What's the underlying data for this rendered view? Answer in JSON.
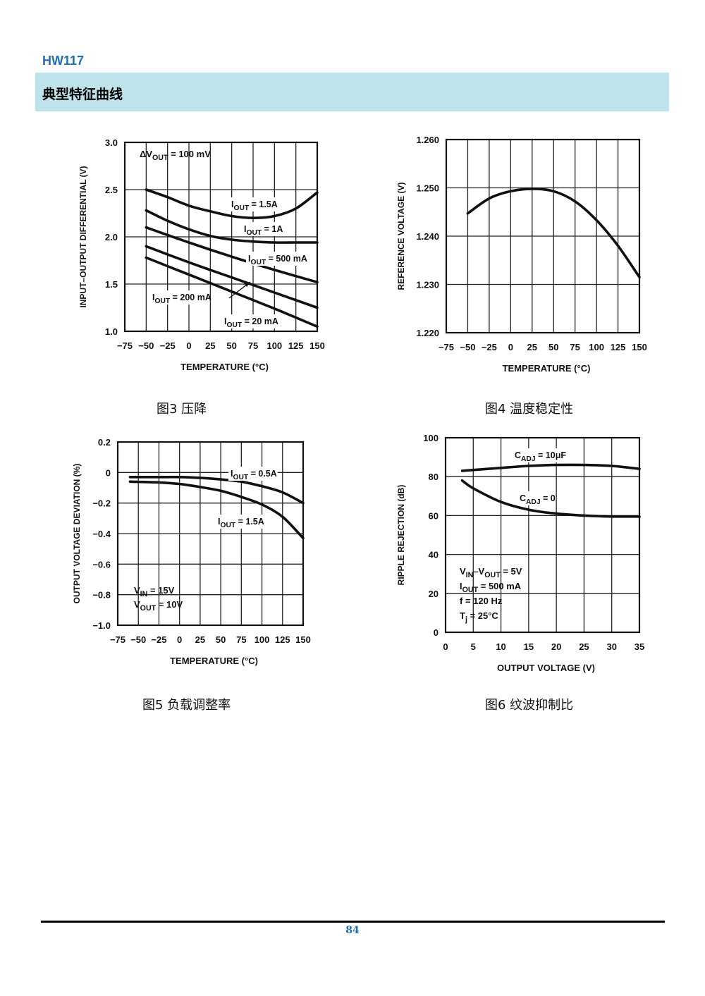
{
  "header": {
    "doc_code": "HW117",
    "section_title": "典型特征曲线"
  },
  "footer": {
    "page_number": "84"
  },
  "chart_data": [
    {
      "id": "fig3",
      "caption": "图3 压降",
      "type": "line",
      "xlabel": "TEMPERATURE (°C)",
      "ylabel": "INPUT–OUTPUT DIFFERENTIAL (V)",
      "xlim": [
        -75,
        150
      ],
      "ylim": [
        1.0,
        3.0
      ],
      "xticks": [
        "−75",
        "−50",
        "−25",
        "0",
        "25",
        "50",
        "75",
        "100",
        "125",
        "150"
      ],
      "yticks": [
        "1.0",
        "1.5",
        "2.0",
        "2.5",
        "3.0"
      ],
      "grid": true,
      "annotation_lines": [
        {
          "main": "ΔV",
          "sub": "OUT",
          "tail": " = 100 mV"
        }
      ],
      "series": [
        {
          "name": "I_OUT = 1.5A",
          "label": {
            "main": "I",
            "sub": "OUT",
            "tail": " = 1.5A"
          },
          "x": [
            -50,
            -25,
            0,
            25,
            50,
            75,
            100,
            125,
            150
          ],
          "y": [
            2.5,
            2.42,
            2.33,
            2.27,
            2.22,
            2.2,
            2.22,
            2.3,
            2.47
          ]
        },
        {
          "name": "I_OUT = 1A",
          "label": {
            "main": "I",
            "sub": "OUT",
            "tail": " = 1A"
          },
          "x": [
            -50,
            -25,
            0,
            25,
            50,
            75,
            100,
            125,
            150
          ],
          "y": [
            2.28,
            2.17,
            2.08,
            2.01,
            1.97,
            1.95,
            1.94,
            1.94,
            1.94
          ]
        },
        {
          "name": "I_OUT = 500 mA",
          "label": {
            "main": "I",
            "sub": "OUT",
            "tail": " = 500 mA"
          },
          "x": [
            -50,
            0,
            50,
            100,
            150
          ],
          "y": [
            2.1,
            1.94,
            1.79,
            1.65,
            1.52
          ]
        },
        {
          "name": "I_OUT = 200 mA",
          "label": {
            "main": "I",
            "sub": "OUT",
            "tail": " = 200 mA"
          },
          "x": [
            -50,
            0,
            50,
            100,
            150
          ],
          "y": [
            1.9,
            1.73,
            1.57,
            1.41,
            1.25
          ]
        },
        {
          "name": "I_OUT = 20 mA",
          "label": {
            "main": "I",
            "sub": "OUT",
            "tail": " = 20 mA"
          },
          "x": [
            -50,
            0,
            50,
            100,
            150
          ],
          "y": [
            1.78,
            1.6,
            1.42,
            1.24,
            1.05
          ]
        }
      ]
    },
    {
      "id": "fig4",
      "caption": "图4 温度稳定性",
      "type": "line",
      "xlabel": "TEMPERATURE (°C)",
      "ylabel": "REFERENCE VOLTAGE (V)",
      "xlim": [
        -75,
        150
      ],
      "ylim": [
        1.22,
        1.26
      ],
      "xticks": [
        "−75",
        "−50",
        "−25",
        "0",
        "25",
        "50",
        "75",
        "100",
        "125",
        "150"
      ],
      "yticks": [
        "1.220",
        "1.230",
        "1.240",
        "1.250",
        "1.260"
      ],
      "grid": true,
      "annotation_lines": [],
      "series": [
        {
          "name": "",
          "label": null,
          "x": [
            -50,
            -25,
            0,
            25,
            50,
            75,
            100,
            125,
            150
          ],
          "y": [
            1.2447,
            1.2478,
            1.2493,
            1.2498,
            1.2493,
            1.2472,
            1.2433,
            1.238,
            1.2315
          ]
        }
      ]
    },
    {
      "id": "fig5",
      "caption": "图5 负载调整率",
      "type": "line",
      "xlabel": "TEMPERATURE (°C)",
      "ylabel": "OUTPUT VOLTAGE DEVIATION (%)",
      "xlim": [
        -75,
        150
      ],
      "ylim": [
        -1.0,
        0.2
      ],
      "xticks": [
        "−75",
        "−50",
        "−25",
        "0",
        "25",
        "50",
        "75",
        "100",
        "125",
        "150"
      ],
      "yticks": [
        "−1.0",
        "−0.8",
        "−0.6",
        "−0.4",
        "−0.2",
        "0",
        "0.2"
      ],
      "grid": true,
      "annotation_lines": [
        {
          "main": "V",
          "sub": "IN",
          "tail": " = 15V"
        },
        {
          "main": "V",
          "sub": "OUT",
          "tail": " = 10V"
        }
      ],
      "series": [
        {
          "name": "I_OUT = 0.5A",
          "label": {
            "main": "I",
            "sub": "OUT",
            "tail": " = 0.5A"
          },
          "x": [
            -60,
            -25,
            0,
            25,
            50,
            75,
            100,
            125,
            150
          ],
          "y": [
            -0.03,
            -0.03,
            -0.03,
            -0.035,
            -0.045,
            -0.06,
            -0.09,
            -0.13,
            -0.2
          ]
        },
        {
          "name": "I_OUT = 1.5A",
          "label": {
            "main": "I",
            "sub": "OUT",
            "tail": " = 1.5A"
          },
          "x": [
            -60,
            -25,
            0,
            25,
            50,
            75,
            100,
            125,
            150
          ],
          "y": [
            -0.06,
            -0.065,
            -0.075,
            -0.095,
            -0.12,
            -0.16,
            -0.21,
            -0.29,
            -0.43
          ]
        }
      ]
    },
    {
      "id": "fig6",
      "caption": "图6 纹波抑制比",
      "type": "line",
      "xlabel": "OUTPUT VOLTAGE (V)",
      "ylabel": "RIPPLE REJECTION (dB)",
      "xlim": [
        0,
        35
      ],
      "ylim": [
        0,
        100
      ],
      "xticks": [
        "0",
        "5",
        "10",
        "15",
        "20",
        "25",
        "30",
        "35"
      ],
      "yticks": [
        "0",
        "20",
        "40",
        "60",
        "80",
        "100"
      ],
      "grid": true,
      "annotation_lines": [
        {
          "main": "V",
          "sub": "IN",
          "tail": "–V"
        },
        {
          "main": "I",
          "sub": "OUT",
          "tail": " = 500 mA"
        },
        {
          "main": "f = 120 Hz",
          "sub": "",
          "tail": ""
        },
        {
          "main": "T",
          "sub": "j",
          "tail": " = 25°C"
        }
      ],
      "annotation_vin_vout": {
        "sub2": "OUT",
        "tail2": " = 5V"
      },
      "series": [
        {
          "name": "C_ADJ = 10μF",
          "label": {
            "main": "C",
            "sub": "ADJ",
            "tail": " = 10μF"
          },
          "x": [
            3,
            10,
            15,
            20,
            25,
            30,
            35
          ],
          "y": [
            83,
            84.5,
            85.5,
            86,
            86,
            85.5,
            84
          ]
        },
        {
          "name": "C_ADJ = 0",
          "label": {
            "main": "C",
            "sub": "ADJ",
            "tail": " = 0"
          },
          "x": [
            3,
            5,
            10,
            15,
            20,
            25,
            30,
            35
          ],
          "y": [
            78,
            74,
            67,
            63,
            61,
            60,
            59.5,
            59.5
          ]
        }
      ]
    }
  ]
}
